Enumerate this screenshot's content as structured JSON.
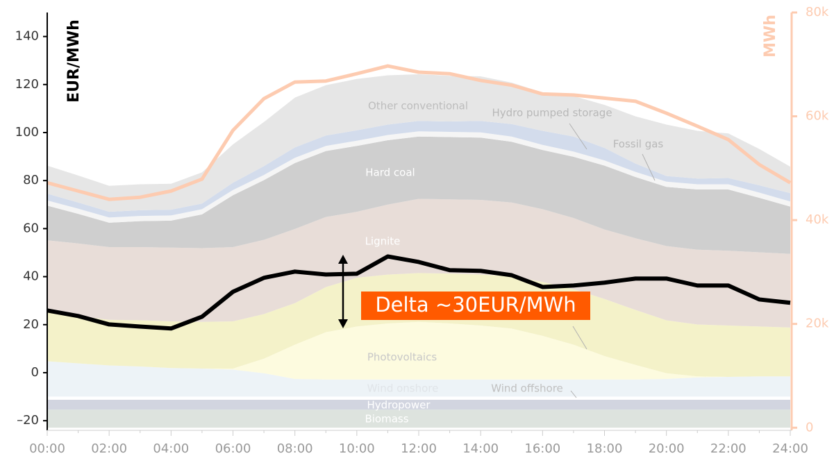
{
  "chart_data": {
    "type": "area",
    "stacked": true,
    "categories": [
      "00:00",
      null,
      "02:00",
      null,
      "04:00",
      null,
      "06:00",
      null,
      "08:00",
      null,
      "10:00",
      null,
      "12:00",
      null,
      "14:00",
      null,
      "16:00",
      null,
      "18:00",
      null,
      "20:00",
      null,
      "22:00",
      null,
      "24:00"
    ],
    "ylabel": "EUR/MWh",
    "y2label": "MWh",
    "ylim": [
      -24,
      150
    ],
    "yticks": [
      {
        "value": -20,
        "label": "–20"
      },
      0,
      20,
      40,
      60,
      80,
      100,
      120,
      140
    ],
    "y2lim": [
      -500,
      80000
    ],
    "y2ticks": [
      0,
      {
        "value": 20000,
        "label": "20k"
      },
      {
        "value": 40000,
        "label": "40k"
      },
      {
        "value": 60000,
        "label": "60k"
      },
      {
        "value": 80000,
        "label": "80k"
      }
    ],
    "annotation": "Delta ~30EUR/MWh",
    "series": [
      {
        "name": "Biomass",
        "axis": "y2",
        "color": "#dde3de",
        "values": [
          3500,
          3500,
          3500,
          3500,
          3500,
          3500,
          3500,
          3500,
          3500,
          3500,
          3500,
          3500,
          3500,
          3500,
          3500,
          3500,
          3500,
          3500,
          3500,
          3500,
          3500,
          3500,
          3500,
          3500,
          3500
        ]
      },
      {
        "name": "Hydropower",
        "axis": "y2",
        "color": "#d2d5e0",
        "values": [
          1900,
          1900,
          1900,
          1900,
          1900,
          1900,
          1900,
          1900,
          1900,
          1900,
          1900,
          1900,
          1900,
          1900,
          1900,
          1900,
          1900,
          1900,
          1900,
          1900,
          1900,
          1900,
          1900,
          1900,
          1900
        ]
      },
      {
        "name": "Wind offshore",
        "axis": "y2",
        "color": "#ffffff",
        "values": [
          600,
          600,
          600,
          600,
          600,
          600,
          600,
          600,
          600,
          600,
          600,
          600,
          600,
          600,
          600,
          600,
          600,
          600,
          600,
          600,
          600,
          600,
          600,
          600,
          600
        ]
      },
      {
        "name": "Wind onshore",
        "axis": "y2",
        "color": "#edf3f7",
        "values": [
          6800,
          6400,
          6000,
          5800,
          5500,
          5400,
          5200,
          4500,
          3400,
          3300,
          3300,
          3300,
          3300,
          3300,
          3300,
          3300,
          3300,
          3300,
          3300,
          3300,
          3400,
          3700,
          3800,
          3900,
          3900
        ]
      },
      {
        "name": "Photovoltaics",
        "axis": "y2",
        "color": "#fdfbdf",
        "values": [
          0,
          0,
          0,
          0,
          0,
          0,
          200,
          2800,
          6600,
          9100,
          10200,
          10800,
          11100,
          10800,
          10400,
          9800,
          8400,
          6700,
          4500,
          2800,
          1100,
          200,
          0,
          0,
          0
        ]
      },
      {
        "axis": "y2",
        "color": "#f4f2c9",
        "values": [
          9400,
          9100,
          8800,
          8900,
          9000,
          9000,
          9100,
          8600,
          8000,
          8700,
          9400,
          9400,
          9400,
          9600,
          9800,
          10100,
          10400,
          10700,
          11000,
          10600,
          10200,
          10000,
          9900,
          9600,
          9400
        ]
      },
      {
        "name": "Lignite",
        "axis": "y2",
        "color": "#e8ddd8",
        "values": [
          13900,
          14000,
          14000,
          14100,
          14200,
          14200,
          14300,
          14300,
          14300,
          13500,
          12700,
          13500,
          14300,
          14300,
          14400,
          14200,
          14000,
          13700,
          13400,
          13800,
          14300,
          14400,
          14400,
          14300,
          14200
        ]
      },
      {
        "name": "Hard coal",
        "axis": "y2",
        "color": "#cfcfcf",
        "values": [
          6700,
          5700,
          4700,
          5000,
          5200,
          6500,
          10000,
          11500,
          12700,
          12700,
          12700,
          12400,
          12000,
          12000,
          12000,
          11700,
          11400,
          11800,
          12300,
          11800,
          11400,
          11600,
          11800,
          10500,
          9100
        ]
      },
      {
        "name": "Fossil gas",
        "axis": "y2",
        "color": "#f5f5f5",
        "values": [
          1000,
          1000,
          1000,
          1000,
          1000,
          1000,
          1000,
          1000,
          1000,
          1000,
          1000,
          1000,
          1000,
          1000,
          1000,
          1000,
          1000,
          1000,
          1000,
          1000,
          1000,
          1000,
          1000,
          1000,
          1000
        ]
      },
      {
        "name": "Hydro pumped storage",
        "axis": "y2",
        "color": "#d3dcec",
        "values": [
          1300,
          1200,
          1100,
          1100,
          1100,
          1100,
          1400,
          1700,
          2000,
          2000,
          2000,
          2000,
          2000,
          2000,
          2200,
          2400,
          2700,
          2900,
          2400,
          1600,
          1100,
          1100,
          1200,
          1400,
          1600
        ]
      },
      {
        "name": "Other conventional",
        "axis": "y2",
        "color": "#e6e6e6",
        "values": [
          5400,
          5200,
          5000,
          5000,
          5000,
          6000,
          7400,
          8500,
          9600,
          9700,
          9900,
          9500,
          9000,
          8800,
          8600,
          8000,
          7400,
          7800,
          8300,
          9100,
          9900,
          9200,
          8600,
          7000,
          5100
        ]
      },
      {
        "type": "line",
        "axis": "y2",
        "color": "#fdcbb0",
        "values": [
          47200,
          45600,
          44000,
          44400,
          45600,
          47900,
          57300,
          63400,
          66600,
          66800,
          68200,
          69700,
          68500,
          68200,
          66900,
          66000,
          64300,
          64100,
          63500,
          62900,
          60600,
          58100,
          55500,
          50700,
          47200
        ]
      },
      {
        "type": "line",
        "color": "#000000",
        "values": [
          25.9,
          23.6,
          20.1,
          19.2,
          18.4,
          23.3,
          33.7,
          39.5,
          42.1,
          40.9,
          41.2,
          48.4,
          46.1,
          42.7,
          42.4,
          40.6,
          35.7,
          36.3,
          37.5,
          39.2,
          39.2,
          36.3,
          36.3,
          30.5,
          29.1
        ]
      }
    ]
  }
}
